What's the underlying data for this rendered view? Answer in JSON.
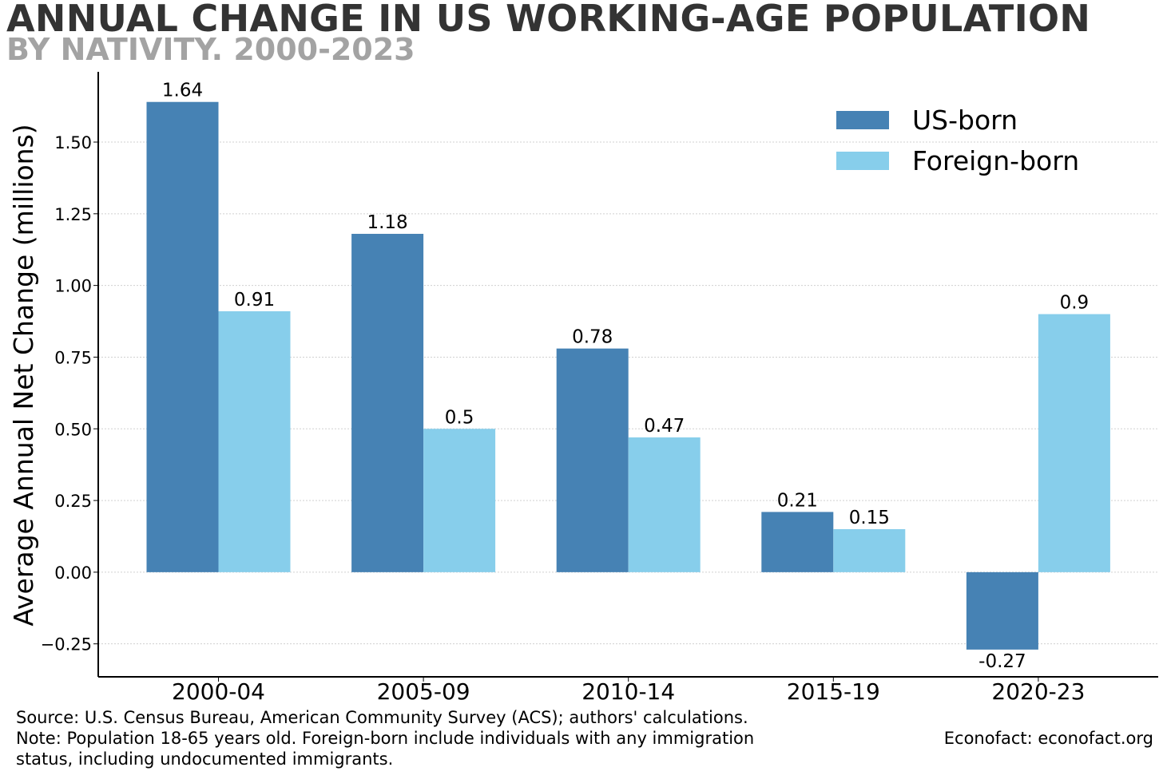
{
  "header": {
    "title": "ANNUAL CHANGE IN US WORKING-AGE POPULATION",
    "subtitle": "BY NATIVITY. 2000-2023"
  },
  "footer": {
    "source": "Source: U.S. Census Bureau, American Community Survey (ACS); authors' calculations.",
    "note_line1": "Note: Population 18-65 years old. Foreign-born include individuals with any immigration",
    "note_line2": "status, including undocumented immigrants.",
    "credit": "Econofact: econofact.org"
  },
  "colors": {
    "us_born": "#4682b4",
    "foreign_born": "#87ceeb",
    "title": "#333333",
    "subtitle": "#a3a3a3"
  },
  "chart_data": {
    "type": "bar",
    "title": "ANNUAL CHANGE IN US WORKING-AGE POPULATION",
    "subtitle": "BY NATIVITY. 2000-2023",
    "xlabel": "",
    "ylabel": "Average Annual Net Change (millions)",
    "categories": [
      "2000-04",
      "2005-09",
      "2010-14",
      "2015-19",
      "2020-23"
    ],
    "series": [
      {
        "name": "US-born",
        "values": [
          1.64,
          1.18,
          0.78,
          0.21,
          -0.27
        ],
        "labels": [
          "1.64",
          "1.18",
          "0.78",
          "0.21",
          "-0.27"
        ],
        "color": "#4682b4"
      },
      {
        "name": "Foreign-born",
        "values": [
          0.91,
          0.5,
          0.47,
          0.15,
          0.9
        ],
        "labels": [
          "0.91",
          "0.5",
          "0.47",
          "0.15",
          "0.9"
        ],
        "color": "#87ceeb"
      }
    ],
    "ylim": [
      -0.365,
      1.745
    ],
    "yticks": [
      -0.25,
      0,
      0.25,
      0.5,
      0.75,
      1.0,
      1.25,
      1.5
    ],
    "ytick_labels": [
      "−0.25",
      "0.00",
      "0.25",
      "0.50",
      "0.75",
      "1.00",
      "1.25",
      "1.50"
    ],
    "grid": true,
    "legend_position": "top-right"
  }
}
